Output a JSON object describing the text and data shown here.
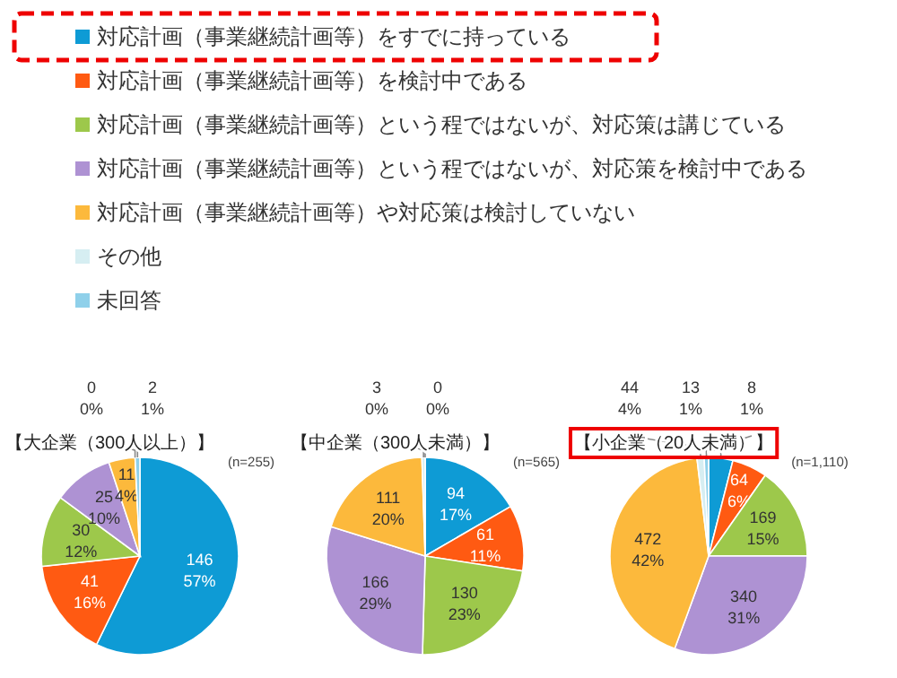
{
  "chart_data": [
    {
      "type": "pie",
      "title": "【大企業（300人以上）】",
      "subtitle": "(n=255)",
      "legend": "top",
      "categories": [
        "対応計画（事業継続計画等）をすでに持っている",
        "対応計画（事業継続計画等）を検討中である",
        "対応計画（事業継続計画等）という程ではないが、対応策は講じている",
        "対応計画（事業継続計画等）という程ではないが、対応策を検討中である",
        "対応計画（事業継続計画等）や対応策は検討していない",
        "その他",
        "未回答"
      ],
      "values": [
        146,
        41,
        30,
        25,
        11,
        0,
        2
      ],
      "value_labels": [
        "146\n57%",
        "41\n16%",
        "30\n12%",
        "25\n10%",
        "11\n4%",
        "0\n0%",
        "2\n1%"
      ],
      "colors": [
        "#0e9bd5",
        "#ff5a12",
        "#9dc84b",
        "#ae92d3",
        "#fcb93c",
        "#d6eef2",
        "#8fd0ea"
      ]
    },
    {
      "type": "pie",
      "title": "【中企業（300人未満）】",
      "subtitle": "(n=565)",
      "values": [
        94,
        61,
        130,
        166,
        111,
        3,
        0
      ],
      "value_labels": [
        "94\n17%",
        "61\n11%",
        "130\n23%",
        "166\n29%",
        "111\n20%",
        "3\n0%",
        "0\n0%"
      ],
      "colors": [
        "#0e9bd5",
        "#ff5a12",
        "#9dc84b",
        "#ae92d3",
        "#fcb93c",
        "#d6eef2",
        "#8fd0ea"
      ]
    },
    {
      "type": "pie",
      "title": "【小企業（20人未満）】",
      "subtitle": "(n=1,110)",
      "values": [
        44,
        64,
        169,
        340,
        472,
        13,
        8
      ],
      "value_labels": [
        "44\n4%",
        "64\n6%",
        "169\n15%",
        "340\n31%",
        "472\n42%",
        "13\n1%",
        "8\n1%"
      ],
      "colors": [
        "#0e9bd5",
        "#ff5a12",
        "#9dc84b",
        "#ae92d3",
        "#fcb93c",
        "#d6eef2",
        "#8fd0ea"
      ]
    }
  ]
}
